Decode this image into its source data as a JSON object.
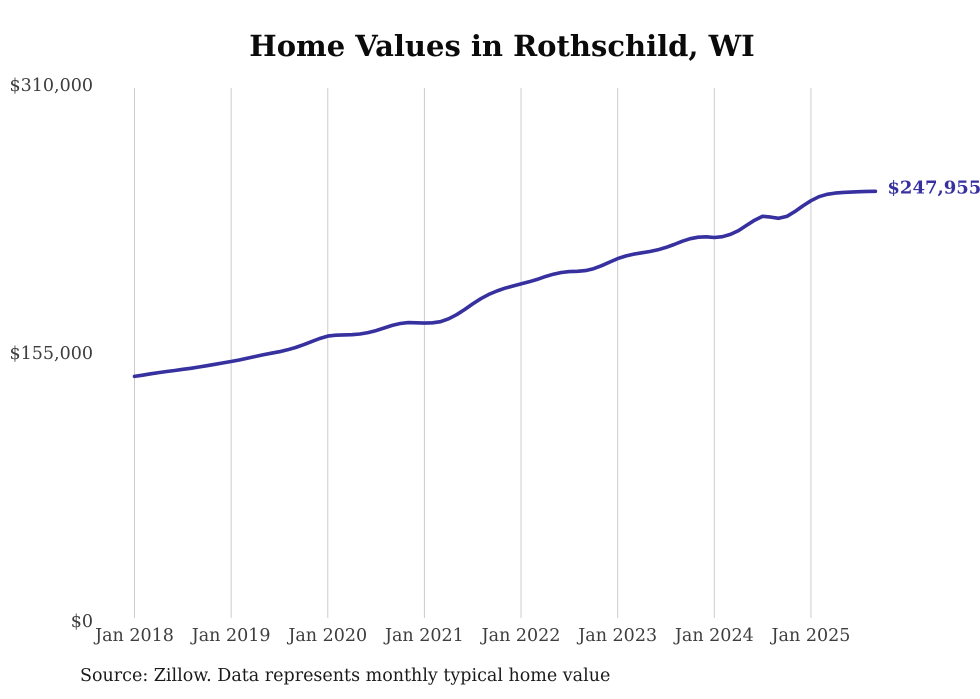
{
  "title": "Home Values in Rothschild, WI",
  "source_note": "Source: Zillow. Data represents monthly typical home value",
  "colors": {
    "line": "#37309f",
    "grid": "#cccccc",
    "axis_text": "#3d3d3d",
    "title_text": "#0b0b0b",
    "note_text": "#1a1a1a",
    "background": "#ffffff"
  },
  "chart_data": {
    "type": "line",
    "title": "Home Values in Rothschild, WI",
    "x_start": "Jan 2018",
    "x_frequency": "monthly",
    "x_tick_labels": [
      "Jan 2018",
      "Jan 2019",
      "Jan 2020",
      "Jan 2021",
      "Jan 2022",
      "Jan 2023",
      "Jan 2024",
      "Jan 2025"
    ],
    "y_ticks": [
      {
        "label": "$0",
        "value": 0
      },
      {
        "label": "$155,000",
        "value": 155000
      },
      {
        "label": "$310,000",
        "value": 310000
      }
    ],
    "ylim": [
      0,
      310000
    ],
    "grid": "vertical",
    "legend": "none",
    "end_annotation": {
      "label": "$247,955",
      "value": 247955
    },
    "values": [
      140900,
      141600,
      142400,
      143100,
      143700,
      144300,
      145000,
      145600,
      146300,
      147100,
      147900,
      148700,
      149500,
      150400,
      151400,
      152400,
      153400,
      154300,
      155200,
      156300,
      157600,
      159200,
      161000,
      162800,
      164200,
      164700,
      164900,
      165000,
      165400,
      166200,
      167400,
      168900,
      170400,
      171500,
      172000,
      171900,
      171700,
      171900,
      172500,
      174200,
      176600,
      179600,
      182800,
      185800,
      188300,
      190300,
      191900,
      193200,
      194400,
      195600,
      197000,
      198600,
      200000,
      201000,
      201500,
      201700,
      202100,
      203200,
      204900,
      207000,
      209000,
      210500,
      211600,
      212400,
      213100,
      214100,
      215500,
      217200,
      219000,
      220500,
      221400,
      221600,
      221200,
      221700,
      223000,
      225200,
      228200,
      231200,
      233500,
      233000,
      232300,
      233400,
      236200,
      239500,
      242500,
      244800,
      246200,
      246900,
      247300,
      247500,
      247700,
      247900,
      247955
    ]
  }
}
